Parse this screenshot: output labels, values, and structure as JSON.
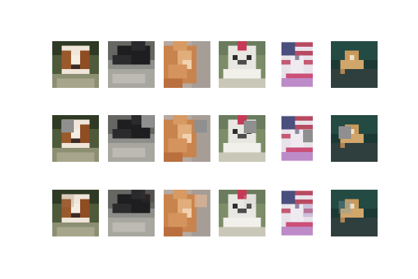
{
  "figure": {
    "rows": [
      {
        "name": "original",
        "images": [
          {
            "subject": "cavalier-spaniel-puppy",
            "occlusion": "none"
          },
          {
            "subject": "black-cat-on-gravel",
            "occlusion": "none"
          },
          {
            "subject": "orange-tabby-cat",
            "occlusion": "none"
          },
          {
            "subject": "white-maltese-with-red-bow",
            "occlusion": "none"
          },
          {
            "subject": "white-dog-with-us-flag",
            "occlusion": "none"
          },
          {
            "subject": "tan-dog-on-teal-background",
            "occlusion": "none"
          }
        ]
      },
      {
        "name": "occluded-gray-patch",
        "images": [
          {
            "subject": "cavalier-spaniel-puppy",
            "occlusion": "gray-patch"
          },
          {
            "subject": "black-cat-on-gravel",
            "occlusion": "gray-patch"
          },
          {
            "subject": "orange-tabby-cat",
            "occlusion": "gray-patch"
          },
          {
            "subject": "white-maltese-with-red-bow",
            "occlusion": "gray-patch"
          },
          {
            "subject": "white-dog-with-us-flag",
            "occlusion": "gray-patch"
          },
          {
            "subject": "tan-dog-on-teal-background",
            "occlusion": "gray-patch"
          }
        ]
      },
      {
        "name": "occluded-faint-patch",
        "images": [
          {
            "subject": "cavalier-spaniel-puppy",
            "occlusion": "faint-patch"
          },
          {
            "subject": "black-cat-on-gravel",
            "occlusion": "faint-patch"
          },
          {
            "subject": "orange-tabby-cat",
            "occlusion": "faint-patch"
          },
          {
            "subject": "white-maltese-with-red-bow",
            "occlusion": "faint-patch"
          },
          {
            "subject": "white-dog-with-us-flag",
            "occlusion": "faint-patch"
          },
          {
            "subject": "tan-dog-on-teal-background",
            "occlusion": "faint-patch"
          }
        ]
      }
    ],
    "colors": {
      "background": "#ffffff",
      "gray_patch": "#8f8f8f",
      "faint_patch": "#c9b39a"
    }
  }
}
